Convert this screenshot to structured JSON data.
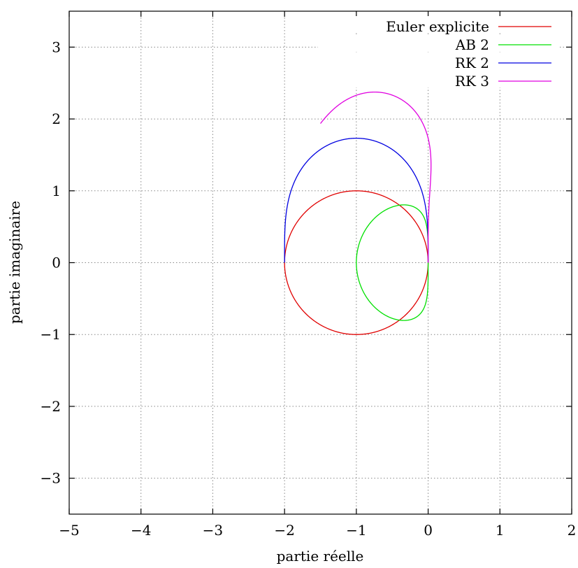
{
  "chart_data": {
    "type": "line",
    "title": "",
    "xlabel": "partie réelle",
    "ylabel": "partie imaginaire",
    "xlim": [
      -5,
      2
    ],
    "ylim": [
      -3.5,
      3.5
    ],
    "xticks": [
      -5,
      -4,
      -3,
      -2,
      -1,
      0,
      1,
      2
    ],
    "yticks": [
      -3,
      -2,
      -1,
      0,
      1,
      2,
      3
    ],
    "xtick_labels": [
      "−5",
      "−4",
      "−3",
      "−2",
      "−1",
      "0",
      "1",
      "2"
    ],
    "ytick_labels": [
      "−3",
      "−2",
      "−1",
      "0",
      "1",
      "2",
      "3"
    ],
    "grid": true,
    "legend_position": "top-right",
    "series": [
      {
        "name": "Euler explicite",
        "color": "#e00000",
        "method": "euler"
      },
      {
        "name": "AB 2",
        "color": "#00e000",
        "method": "ab2"
      },
      {
        "name": "RK 2",
        "color": "#0000e0",
        "method": "rk2"
      },
      {
        "name": "RK 3",
        "color": "#e000e0",
        "method": "rk3"
      }
    ]
  }
}
